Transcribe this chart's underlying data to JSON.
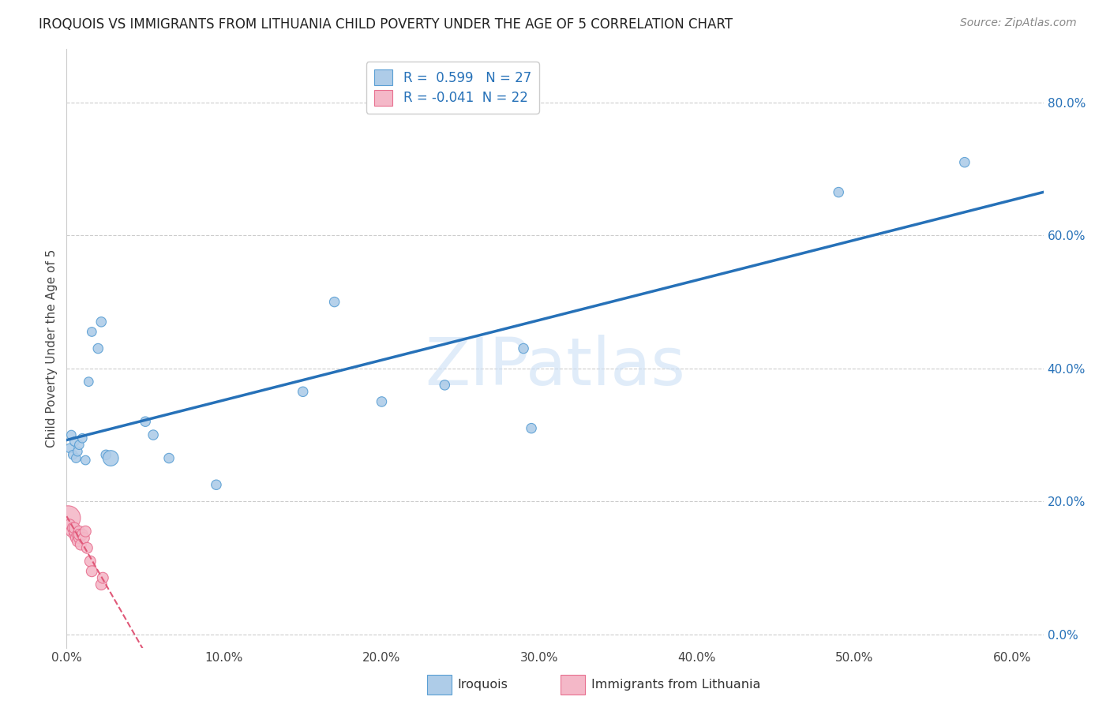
{
  "title": "IROQUOIS VS IMMIGRANTS FROM LITHUANIA CHILD POVERTY UNDER THE AGE OF 5 CORRELATION CHART",
  "source": "Source: ZipAtlas.com",
  "ylabel": "Child Poverty Under the Age of 5",
  "xlim": [
    0.0,
    0.62
  ],
  "ylim": [
    -0.02,
    0.88
  ],
  "xticks": [
    0.0,
    0.1,
    0.2,
    0.3,
    0.4,
    0.5,
    0.6
  ],
  "xticklabels": [
    "0.0%",
    "10.0%",
    "20.0%",
    "30.0%",
    "40.0%",
    "50.0%",
    "60.0%"
  ],
  "yticks_right": [
    0.0,
    0.2,
    0.4,
    0.6,
    0.8
  ],
  "ytick_labels_right": [
    "0.0%",
    "20.0%",
    "40.0%",
    "60.0%",
    "80.0%"
  ],
  "iroquois_color": "#aecce8",
  "iroquois_edge_color": "#5a9fd4",
  "iroquois_line_color": "#2671b8",
  "lithuania_color": "#f4b8c8",
  "lithuania_edge_color": "#e87090",
  "lithuania_line_color": "#e05878",
  "R_iroquois": "0.599",
  "N_iroquois": "27",
  "R_lithuania": "-0.041",
  "N_lithuania": "22",
  "iroquois_x": [
    0.002,
    0.003,
    0.004,
    0.005,
    0.006,
    0.007,
    0.008,
    0.01,
    0.012,
    0.014,
    0.016,
    0.02,
    0.022,
    0.025,
    0.028,
    0.05,
    0.055,
    0.065,
    0.095,
    0.15,
    0.17,
    0.2,
    0.24,
    0.29,
    0.295,
    0.49,
    0.57
  ],
  "iroquois_y": [
    0.28,
    0.3,
    0.27,
    0.29,
    0.265,
    0.275,
    0.285,
    0.295,
    0.262,
    0.38,
    0.455,
    0.43,
    0.47,
    0.27,
    0.265,
    0.32,
    0.3,
    0.265,
    0.225,
    0.365,
    0.5,
    0.35,
    0.375,
    0.43,
    0.31,
    0.665,
    0.71
  ],
  "iroquois_sizes": [
    70,
    70,
    70,
    70,
    70,
    70,
    70,
    70,
    70,
    70,
    70,
    80,
    80,
    80,
    200,
    80,
    80,
    80,
    80,
    80,
    80,
    80,
    80,
    80,
    80,
    80,
    80
  ],
  "lithuania_x": [
    0.001,
    0.002,
    0.003,
    0.004,
    0.005,
    0.005,
    0.005,
    0.006,
    0.007,
    0.007,
    0.008,
    0.008,
    0.008,
    0.009,
    0.01,
    0.011,
    0.012,
    0.013,
    0.015,
    0.016,
    0.022,
    0.023
  ],
  "lithuania_y": [
    0.175,
    0.165,
    0.155,
    0.16,
    0.15,
    0.155,
    0.16,
    0.145,
    0.15,
    0.14,
    0.145,
    0.155,
    0.15,
    0.135,
    0.15,
    0.145,
    0.155,
    0.13,
    0.11,
    0.095,
    0.075,
    0.085
  ],
  "lithuania_sizes": [
    500,
    100,
    100,
    100,
    100,
    100,
    100,
    100,
    100,
    100,
    100,
    100,
    100,
    100,
    100,
    100,
    100,
    100,
    100,
    100,
    100,
    100
  ],
  "watermark_text": "ZIPatlas",
  "background_color": "#ffffff",
  "grid_color": "#cccccc"
}
